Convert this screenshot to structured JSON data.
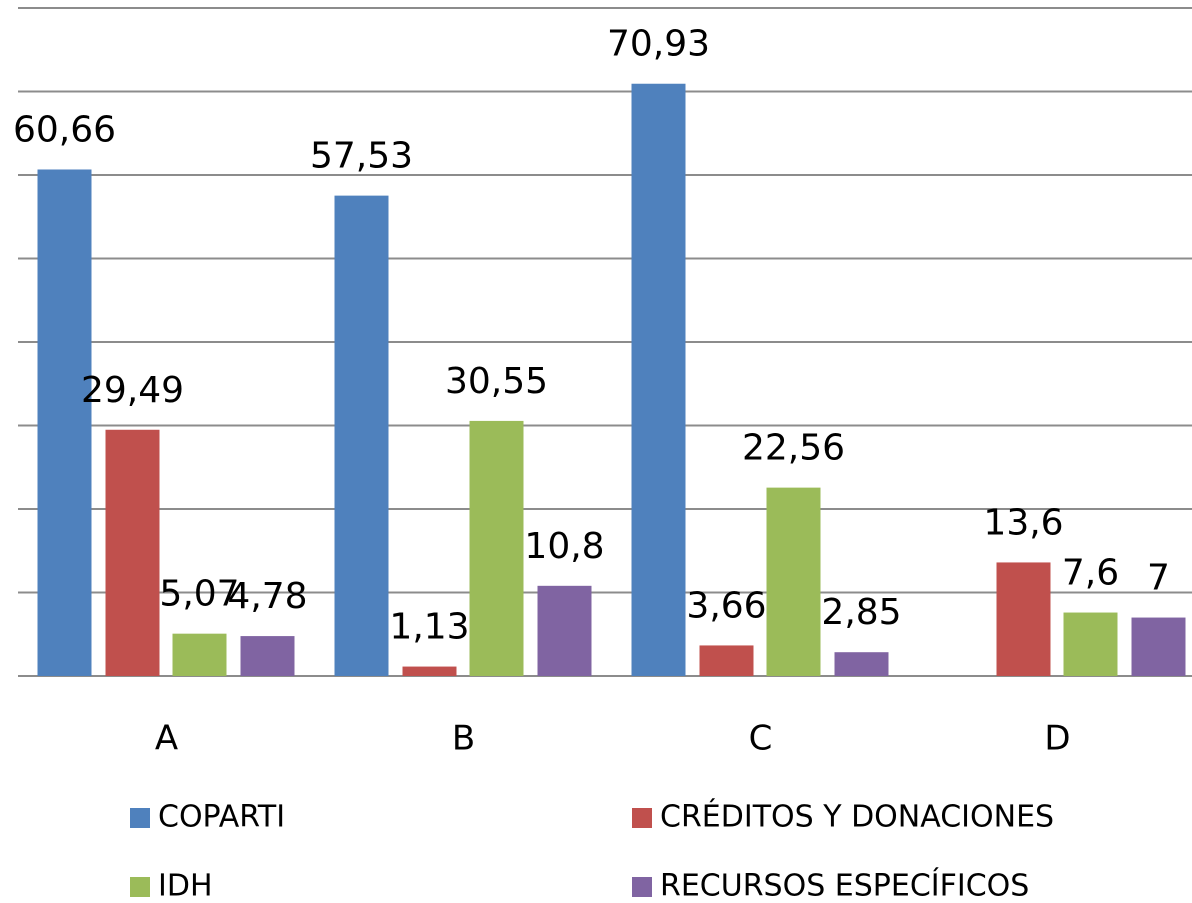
{
  "chart_data": {
    "type": "bar",
    "categories": [
      "A",
      "B",
      "C",
      "D"
    ],
    "series": [
      {
        "name": "COPARTI",
        "color": "#4f81bd",
        "values": [
          60.66,
          57.53,
          70.93,
          null
        ],
        "value_labels": [
          "60,66",
          "57,53",
          "70,93",
          null
        ]
      },
      {
        "name": "CRÉDITOS Y DONACIONES",
        "color": "#c0504d",
        "values": [
          29.49,
          1.13,
          3.66,
          13.6
        ],
        "value_labels": [
          "29,49",
          "1,13",
          "3,66",
          "13,6"
        ]
      },
      {
        "name": "IDH",
        "color": "#9bbb59",
        "values": [
          5.07,
          30.55,
          22.56,
          7.6
        ],
        "value_labels": [
          "5,07",
          "30,55",
          "22,56",
          "7,6"
        ]
      },
      {
        "name": "RECURSOS ESPECÍFICOS",
        "color": "#8064a2",
        "values": [
          4.78,
          10.8,
          2.85,
          7
        ],
        "value_labels": [
          "4,78",
          "10,8",
          "2,85",
          "7"
        ]
      }
    ],
    "ylim": [
      0,
      80
    ],
    "yticks": [
      0,
      10,
      20,
      30,
      40,
      50,
      60,
      70,
      80
    ],
    "grid": true
  }
}
